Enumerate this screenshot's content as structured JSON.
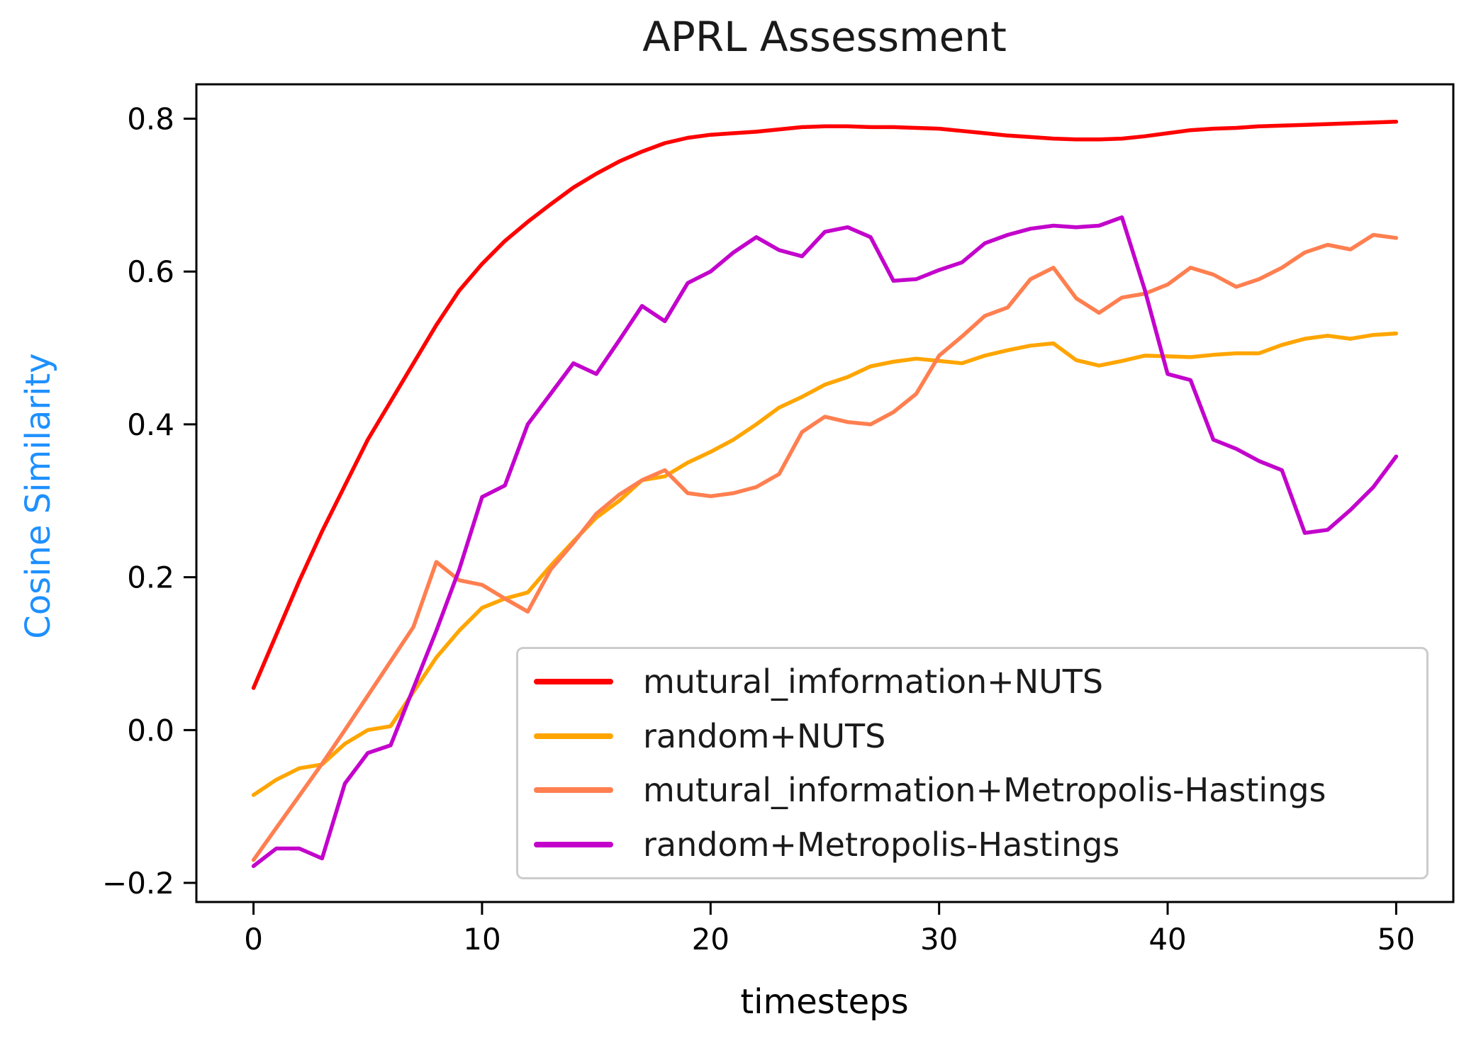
{
  "figure": {
    "title": "APRL Assessment",
    "background_color": "#ffffff",
    "axes_color": "#000000",
    "ylabel_color": "#1e90ff"
  },
  "chart_data": {
    "type": "line",
    "title": "APRL Assessment",
    "xlabel": "timesteps",
    "ylabel": "Cosine Similarity",
    "xlim": [
      -2.5,
      52.5
    ],
    "ylim": [
      -0.225,
      0.845
    ],
    "x_ticks": [
      0,
      10,
      20,
      30,
      40,
      50
    ],
    "y_ticks": [
      -0.2,
      0.0,
      0.2,
      0.4,
      0.6,
      0.8
    ],
    "grid": false,
    "legend_position": "lower right inside",
    "x": [
      0,
      1,
      2,
      3,
      4,
      5,
      6,
      7,
      8,
      9,
      10,
      11,
      12,
      13,
      14,
      15,
      16,
      17,
      18,
      19,
      20,
      21,
      22,
      23,
      24,
      25,
      26,
      27,
      28,
      29,
      30,
      31,
      32,
      33,
      34,
      35,
      36,
      37,
      38,
      39,
      40,
      41,
      42,
      43,
      44,
      45,
      46,
      47,
      48,
      49,
      50
    ],
    "series": [
      {
        "name": "mutural_imformation+NUTS",
        "color": "#ff0000",
        "values": [
          0.055,
          0.125,
          0.195,
          0.26,
          0.32,
          0.38,
          0.43,
          0.48,
          0.53,
          0.575,
          0.61,
          0.64,
          0.665,
          0.688,
          0.71,
          0.728,
          0.744,
          0.757,
          0.768,
          0.775,
          0.779,
          0.781,
          0.783,
          0.786,
          0.789,
          0.79,
          0.79,
          0.789,
          0.789,
          0.788,
          0.787,
          0.784,
          0.781,
          0.778,
          0.776,
          0.774,
          0.773,
          0.773,
          0.774,
          0.777,
          0.781,
          0.785,
          0.787,
          0.788,
          0.79,
          0.791,
          0.792,
          0.793,
          0.794,
          0.795,
          0.796
        ]
      },
      {
        "name": "random+NUTS",
        "color": "#ffa500",
        "values": [
          -0.085,
          -0.065,
          -0.05,
          -0.045,
          -0.018,
          0.0,
          0.005,
          0.05,
          0.095,
          0.13,
          0.16,
          0.172,
          0.18,
          0.215,
          0.247,
          0.278,
          0.3,
          0.327,
          0.332,
          0.35,
          0.364,
          0.38,
          0.4,
          0.422,
          0.436,
          0.452,
          0.462,
          0.476,
          0.482,
          0.486,
          0.483,
          0.48,
          0.49,
          0.497,
          0.503,
          0.506,
          0.484,
          0.477,
          0.483,
          0.49,
          0.489,
          0.488,
          0.491,
          0.493,
          0.493,
          0.504,
          0.512,
          0.516,
          0.512,
          0.517,
          0.519
        ]
      },
      {
        "name": "mutural_information+Metropolis-Hastings",
        "color": "#ff7f50",
        "values": [
          -0.17,
          -0.128,
          -0.086,
          -0.044,
          0.0,
          0.045,
          0.09,
          0.135,
          0.22,
          0.196,
          0.19,
          0.172,
          0.155,
          0.21,
          0.245,
          0.283,
          0.308,
          0.327,
          0.34,
          0.31,
          0.306,
          0.31,
          0.318,
          0.335,
          0.39,
          0.41,
          0.403,
          0.4,
          0.416,
          0.44,
          0.49,
          0.515,
          0.542,
          0.553,
          0.59,
          0.605,
          0.565,
          0.546,
          0.566,
          0.571,
          0.583,
          0.605,
          0.596,
          0.58,
          0.59,
          0.605,
          0.625,
          0.635,
          0.629,
          0.648,
          0.644
        ]
      },
      {
        "name": "random+Metropolis-Hastings",
        "color": "#c303cc",
        "values": [
          -0.178,
          -0.155,
          -0.155,
          -0.168,
          -0.07,
          -0.03,
          -0.02,
          0.055,
          0.13,
          0.21,
          0.305,
          0.32,
          0.4,
          0.44,
          0.48,
          0.466,
          0.51,
          0.555,
          0.535,
          0.585,
          0.6,
          0.625,
          0.645,
          0.628,
          0.62,
          0.652,
          0.658,
          0.645,
          0.588,
          0.59,
          0.602,
          0.612,
          0.637,
          0.648,
          0.656,
          0.66,
          0.658,
          0.66,
          0.671,
          0.576,
          0.466,
          0.458,
          0.38,
          0.368,
          0.352,
          0.34,
          0.258,
          0.262,
          0.288,
          0.318,
          0.358
        ]
      }
    ]
  }
}
